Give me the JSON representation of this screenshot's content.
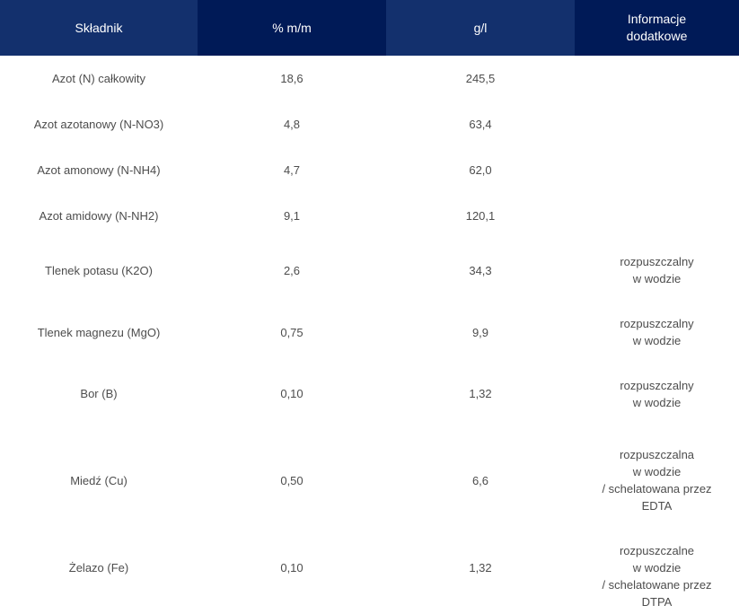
{
  "header": {
    "col1": "Składnik",
    "col2": "% m/m",
    "col3": "g/l",
    "col4_line1": "Informacje",
    "col4_line2": "dodatkowe"
  },
  "rows": [
    {
      "name": "Azot (N) całkowity",
      "pct": "18,6",
      "gl": "245,5",
      "info": []
    },
    {
      "name": "Azot azotanowy (N-NO3)",
      "pct": "4,8",
      "gl": "63,4",
      "info": []
    },
    {
      "name": "Azot amonowy (N-NH4)",
      "pct": "4,7",
      "gl": "62,0",
      "info": []
    },
    {
      "name": "Azot amidowy (N-NH2)",
      "pct": "9,1",
      "gl": "120,1",
      "info": []
    },
    {
      "name": "Tlenek potasu (K2O)",
      "pct": "2,6",
      "gl": "34,3",
      "info": [
        "rozpuszczalny",
        "w wodzie"
      ]
    },
    {
      "name": "Tlenek magnezu (MgO)",
      "pct": "0,75",
      "gl": "9,9",
      "info": [
        "rozpuszczalny",
        "w wodzie"
      ]
    },
    {
      "name": "Bor (B)",
      "pct": "0,10",
      "gl": "1,32",
      "info": [
        "rozpuszczalny",
        "w wodzie"
      ]
    },
    {
      "name": "Miedź (Cu)",
      "pct": "0,50",
      "gl": "6,6",
      "info": [
        "rozpuszczalna",
        "w wodzie",
        "/ schelatowana przez",
        "EDTA"
      ]
    },
    {
      "name": "Żelazo (Fe)",
      "pct": "0,10",
      "gl": "1,32",
      "info": [
        "rozpuszczalne",
        "w wodzie",
        "/ schelatowane przez",
        "DTPA"
      ]
    }
  ],
  "colors": {
    "header_light": "#13306d",
    "header_dark": "#001a57",
    "text": "#4d4d4d"
  }
}
